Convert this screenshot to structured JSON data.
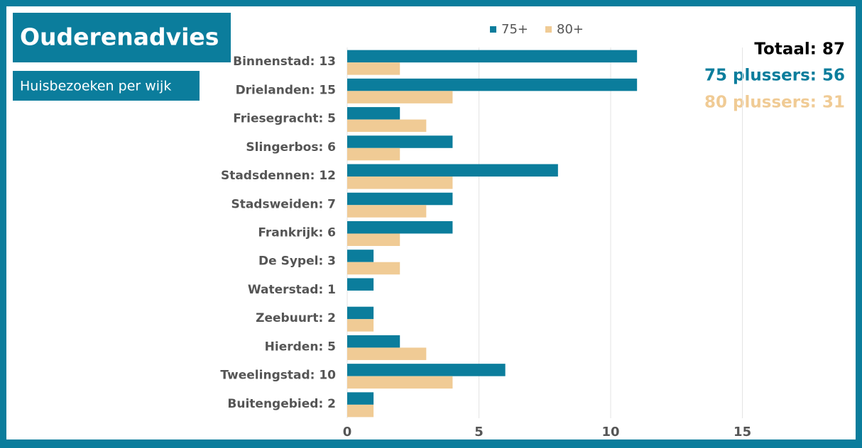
{
  "title": "Ouderenadvies",
  "subtitle": "Huisbezoeken per wijk",
  "stats": {
    "total": "Totaal: 87",
    "s75": "75 plussers: 56",
    "s80": "80 plussers: 31"
  },
  "chart_data": {
    "type": "bar",
    "orientation": "horizontal",
    "categories": [
      "Binnenstad: 13",
      "Drielanden: 15",
      "Friesegracht: 5",
      "Slingerbos: 6",
      "Stadsdennen: 12",
      "Stadsweiden: 7",
      "Frankrijk: 6",
      "De Sypel: 3",
      "Waterstad: 1",
      "Zeebuurt: 2",
      "Hierden: 5",
      "Tweelingstad: 10",
      "Buitengebied: 2"
    ],
    "series": [
      {
        "name": "75+",
        "color": "#0b7d9c",
        "values": [
          11,
          11,
          2,
          4,
          8,
          4,
          4,
          1,
          1,
          1,
          2,
          6,
          1
        ]
      },
      {
        "name": "80+",
        "color": "#f0cb95",
        "values": [
          2,
          4,
          3,
          2,
          4,
          3,
          2,
          2,
          0,
          1,
          3,
          4,
          1
        ]
      }
    ],
    "xlim": [
      0,
      19
    ],
    "xticks": [
      0,
      5,
      10,
      15
    ],
    "grid": true,
    "legend": "top"
  }
}
